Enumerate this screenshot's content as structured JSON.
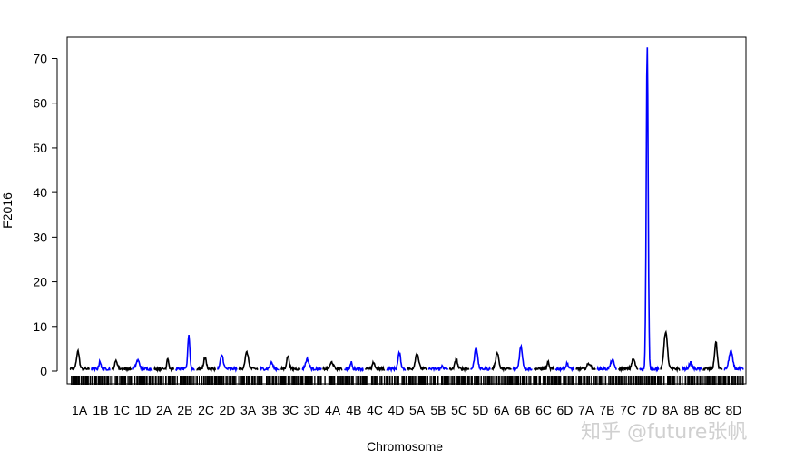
{
  "chart_data": {
    "type": "line",
    "ylabel": "F2016",
    "xlabel": "Chromosome",
    "ylim": [
      0,
      75
    ],
    "yticks": [
      0,
      10,
      20,
      30,
      40,
      50,
      60,
      70
    ],
    "grid": false,
    "colors": {
      "track_odd": "#000000",
      "track_even": "#0000ff",
      "rug": "#000000"
    },
    "categories": [
      "1A",
      "1B",
      "1C",
      "1D",
      "2A",
      "2B",
      "2C",
      "2D",
      "3A",
      "3B",
      "3C",
      "3D",
      "4A",
      "4B",
      "4C",
      "4D",
      "5A",
      "5B",
      "5C",
      "5D",
      "6A",
      "6B",
      "6C",
      "6D",
      "7A",
      "7B",
      "7C",
      "7D",
      "8A",
      "8B",
      "8C",
      "8D"
    ],
    "series": [
      {
        "values": [
          4.0,
          1.8,
          1.8,
          1.9,
          2.5,
          7.6,
          2.5,
          3.1,
          3.7,
          1.5,
          2.9,
          2.2,
          1.5,
          1.6,
          1.5,
          3.6,
          3.5,
          0.8,
          2.3,
          4.9,
          3.7,
          5.0,
          1.6,
          1.2,
          1.2,
          2.0,
          2.2,
          72.0,
          8.3,
          1.3,
          6.0,
          4.0
        ]
      }
    ]
  },
  "watermark": "知乎 @future张帆"
}
